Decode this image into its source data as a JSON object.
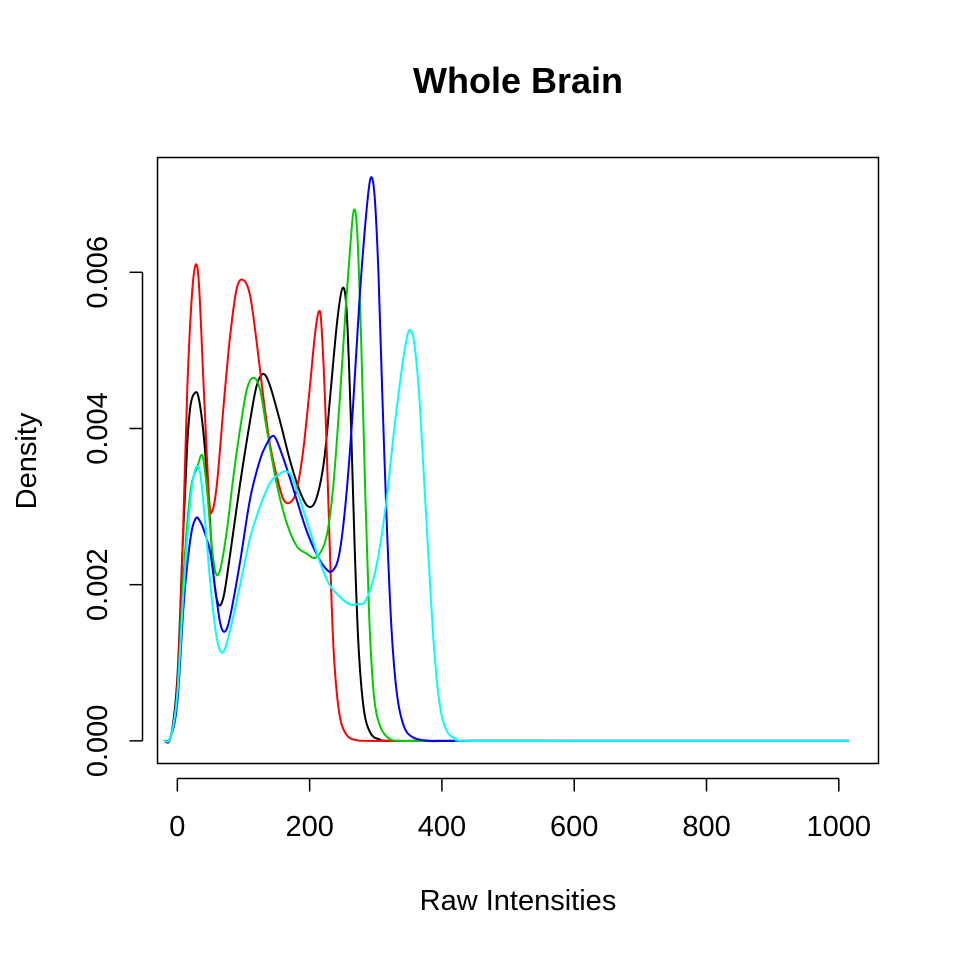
{
  "chart_data": {
    "type": "line",
    "title": "Whole Brain",
    "xlabel": "Raw Intensities",
    "ylabel": "Density",
    "xlim": [
      -30,
      1060
    ],
    "ylim": [
      -0.00029,
      0.00747
    ],
    "x_ticks": [
      0,
      200,
      400,
      600,
      800,
      1000
    ],
    "x_tick_labels": [
      "0",
      "200",
      "400",
      "600",
      "800",
      "1000"
    ],
    "y_ticks": [
      0,
      0.002,
      0.004,
      0.006
    ],
    "y_tick_labels": [
      "0.000",
      "0.002",
      "0.004",
      "0.006"
    ],
    "grid": false,
    "legend": "none",
    "series": [
      {
        "color": "#000000",
        "points": [
          [
            -20,
            0
          ],
          [
            -10,
            5e-05
          ],
          [
            0,
            0.0008
          ],
          [
            8,
            0.0025
          ],
          [
            15,
            0.0038
          ],
          [
            20,
            0.0043
          ],
          [
            26,
            0.00445
          ],
          [
            32,
            0.0044
          ],
          [
            40,
            0.0039
          ],
          [
            48,
            0.003
          ],
          [
            55,
            0.0021
          ],
          [
            62,
            0.00175
          ],
          [
            70,
            0.00185
          ],
          [
            80,
            0.0024
          ],
          [
            95,
            0.0033
          ],
          [
            110,
            0.0041
          ],
          [
            120,
            0.00455
          ],
          [
            130,
            0.0047
          ],
          [
            140,
            0.00455
          ],
          [
            155,
            0.0041
          ],
          [
            170,
            0.0036
          ],
          [
            185,
            0.0032
          ],
          [
            198,
            0.003
          ],
          [
            210,
            0.0031
          ],
          [
            222,
            0.0036
          ],
          [
            232,
            0.0045
          ],
          [
            242,
            0.0054
          ],
          [
            250,
            0.0058
          ],
          [
            256,
            0.0055
          ],
          [
            262,
            0.0042
          ],
          [
            268,
            0.0025
          ],
          [
            274,
            0.0012
          ],
          [
            282,
            0.0004
          ],
          [
            292,
            0.0001
          ],
          [
            305,
            2e-05
          ],
          [
            320,
            0
          ],
          [
            400,
            0
          ],
          [
            600,
            0
          ],
          [
            800,
            0
          ],
          [
            1015,
            0
          ]
        ]
      },
      {
        "color": "#ff0000",
        "points": [
          [
            -20,
            0
          ],
          [
            -10,
            5e-05
          ],
          [
            0,
            0.0007
          ],
          [
            8,
            0.0025
          ],
          [
            15,
            0.0045
          ],
          [
            22,
            0.0057
          ],
          [
            28,
            0.0061
          ],
          [
            33,
            0.0058
          ],
          [
            40,
            0.0045
          ],
          [
            48,
            0.0031
          ],
          [
            53,
            0.00295
          ],
          [
            60,
            0.0033
          ],
          [
            70,
            0.0043
          ],
          [
            80,
            0.0052
          ],
          [
            90,
            0.0058
          ],
          [
            100,
            0.0059
          ],
          [
            110,
            0.0057
          ],
          [
            120,
            0.0051
          ],
          [
            130,
            0.0044
          ],
          [
            140,
            0.0038
          ],
          [
            150,
            0.0034
          ],
          [
            160,
            0.0031
          ],
          [
            170,
            0.00305
          ],
          [
            180,
            0.0032
          ],
          [
            190,
            0.0037
          ],
          [
            200,
            0.0045
          ],
          [
            208,
            0.0052
          ],
          [
            214,
            0.0055
          ],
          [
            218,
            0.0053
          ],
          [
            224,
            0.0042
          ],
          [
            230,
            0.0026
          ],
          [
            236,
            0.0012
          ],
          [
            244,
            0.0004
          ],
          [
            254,
            0.0001
          ],
          [
            270,
            1e-05
          ],
          [
            300,
            0
          ],
          [
            400,
            0
          ],
          [
            600,
            0
          ],
          [
            800,
            0
          ],
          [
            1015,
            0
          ]
        ]
      },
      {
        "color": "#00cd00",
        "points": [
          [
            -20,
            0
          ],
          [
            -10,
            5e-05
          ],
          [
            0,
            0.0006
          ],
          [
            10,
            0.0022
          ],
          [
            20,
            0.0032
          ],
          [
            30,
            0.0035
          ],
          [
            38,
            0.00365
          ],
          [
            45,
            0.0032
          ],
          [
            52,
            0.0025
          ],
          [
            58,
            0.00215
          ],
          [
            65,
            0.0022
          ],
          [
            75,
            0.0027
          ],
          [
            85,
            0.0034
          ],
          [
            95,
            0.004
          ],
          [
            105,
            0.0045
          ],
          [
            115,
            0.00465
          ],
          [
            125,
            0.0045
          ],
          [
            135,
            0.004
          ],
          [
            150,
            0.0033
          ],
          [
            165,
            0.0028
          ],
          [
            180,
            0.0025
          ],
          [
            195,
            0.0024
          ],
          [
            210,
            0.00235
          ],
          [
            225,
            0.0026
          ],
          [
            235,
            0.0032
          ],
          [
            245,
            0.0043
          ],
          [
            255,
            0.0056
          ],
          [
            262,
            0.0064
          ],
          [
            267,
            0.0068
          ],
          [
            272,
            0.0065
          ],
          [
            278,
            0.0051
          ],
          [
            284,
            0.0032
          ],
          [
            290,
            0.0016
          ],
          [
            297,
            0.0006
          ],
          [
            306,
            0.0002
          ],
          [
            320,
            3e-05
          ],
          [
            340,
            0
          ],
          [
            400,
            0
          ],
          [
            600,
            0
          ],
          [
            800,
            0
          ],
          [
            1015,
            0
          ]
        ]
      },
      {
        "color": "#0000ff",
        "points": [
          [
            -20,
            0
          ],
          [
            -10,
            5e-05
          ],
          [
            0,
            0.0005
          ],
          [
            10,
            0.0018
          ],
          [
            20,
            0.0026
          ],
          [
            28,
            0.00285
          ],
          [
            35,
            0.0028
          ],
          [
            42,
            0.00265
          ],
          [
            50,
            0.0024
          ],
          [
            58,
            0.0019
          ],
          [
            65,
            0.0015
          ],
          [
            72,
            0.0014
          ],
          [
            80,
            0.0016
          ],
          [
            95,
            0.0023
          ],
          [
            110,
            0.0031
          ],
          [
            125,
            0.0036
          ],
          [
            135,
            0.0038
          ],
          [
            143,
            0.0039
          ],
          [
            150,
            0.00385
          ],
          [
            165,
            0.0035
          ],
          [
            180,
            0.0031
          ],
          [
            195,
            0.0027
          ],
          [
            210,
            0.0024
          ],
          [
            225,
            0.0022
          ],
          [
            235,
            0.00218
          ],
          [
            245,
            0.0024
          ],
          [
            255,
            0.0031
          ],
          [
            265,
            0.0042
          ],
          [
            275,
            0.0056
          ],
          [
            285,
            0.0067
          ],
          [
            292,
            0.0072
          ],
          [
            298,
            0.007
          ],
          [
            304,
            0.006
          ],
          [
            310,
            0.0044
          ],
          [
            317,
            0.0027
          ],
          [
            324,
            0.0014
          ],
          [
            332,
            0.0006
          ],
          [
            342,
            0.0002
          ],
          [
            355,
            5e-05
          ],
          [
            380,
            0
          ],
          [
            420,
            0
          ],
          [
            600,
            0
          ],
          [
            800,
            0
          ],
          [
            1015,
            0
          ]
        ]
      },
      {
        "color": "#00ffff",
        "points": [
          [
            -20,
            0
          ],
          [
            -10,
            5e-05
          ],
          [
            0,
            0.0006
          ],
          [
            10,
            0.002
          ],
          [
            20,
            0.0031
          ],
          [
            28,
            0.0035
          ],
          [
            35,
            0.0034
          ],
          [
            42,
            0.0028
          ],
          [
            50,
            0.002
          ],
          [
            58,
            0.0014
          ],
          [
            65,
            0.00115
          ],
          [
            72,
            0.00118
          ],
          [
            82,
            0.0015
          ],
          [
            95,
            0.002
          ],
          [
            110,
            0.0026
          ],
          [
            125,
            0.003
          ],
          [
            140,
            0.0033
          ],
          [
            152,
            0.0034
          ],
          [
            162,
            0.00345
          ],
          [
            172,
            0.0034
          ],
          [
            185,
            0.0031
          ],
          [
            200,
            0.0027
          ],
          [
            215,
            0.0023
          ],
          [
            230,
            0.002
          ],
          [
            245,
            0.00185
          ],
          [
            260,
            0.00175
          ],
          [
            272,
            0.00175
          ],
          [
            285,
            0.0018
          ],
          [
            300,
            0.0022
          ],
          [
            315,
            0.003
          ],
          [
            328,
            0.004
          ],
          [
            340,
            0.0048
          ],
          [
            348,
            0.0052
          ],
          [
            353,
            0.00525
          ],
          [
            358,
            0.0051
          ],
          [
            365,
            0.0045
          ],
          [
            372,
            0.0035
          ],
          [
            380,
            0.0023
          ],
          [
            388,
            0.0012
          ],
          [
            396,
            0.0005
          ],
          [
            406,
            0.00015
          ],
          [
            420,
            3e-05
          ],
          [
            440,
            0
          ],
          [
            600,
            0
          ],
          [
            800,
            0
          ],
          [
            1015,
            0
          ]
        ]
      }
    ]
  }
}
